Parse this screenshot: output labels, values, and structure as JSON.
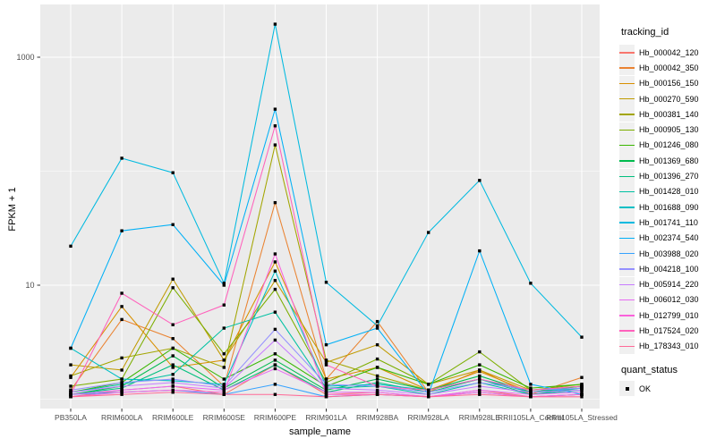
{
  "chart_data": {
    "type": "line",
    "title": "",
    "xlabel": "sample_name",
    "ylabel": "FPKM + 1",
    "y_scale": "log10",
    "ylim": [
      0.85,
      3000
    ],
    "grid": true,
    "y_major_gridlines": [
      10,
      1000
    ],
    "y_minor_gridlines": [
      1,
      100
    ],
    "y_ticks": [
      {
        "value": 1000,
        "label": "1000"
      },
      {
        "value": 10,
        "label": "10"
      }
    ],
    "legend_position": "right",
    "legend_title": "tracking_id",
    "categories": [
      "PB350LA",
      "RRIM600LA",
      "RRIM600LE",
      "RRIM600SE",
      "RRIM600PE",
      "RRIM901LA",
      "RRIM928BA",
      "RRIM928LA",
      "RRIM928LE",
      "RRII105LA_Control",
      "RRII105LA_Stressed"
    ],
    "series": [
      {
        "name": "Hb_000042_120",
        "color": "#F8766D",
        "values": [
          1.05,
          1.2,
          1.3,
          1.1,
          2.0,
          1.1,
          1.15,
          1.05,
          1.2,
          1.05,
          1.1
        ]
      },
      {
        "name": "Hb_000042_350",
        "color": "#EA8331",
        "values": [
          1.2,
          5.0,
          3.4,
          1.3,
          53,
          1.5,
          4.8,
          1.15,
          1.8,
          1.1,
          1.55
        ]
      },
      {
        "name": "Hb_000156_150",
        "color": "#D89000",
        "values": [
          1.55,
          6.5,
          1.9,
          2.2,
          16,
          1.5,
          1.9,
          1.2,
          1.75,
          1.15,
          1.3
        ]
      },
      {
        "name": "Hb_000270_590",
        "color": "#C09B00",
        "values": [
          2.0,
          1.8,
          11.3,
          2.2,
          11,
          2.1,
          3.0,
          1.35,
          1.8,
          1.2,
          1.3
        ]
      },
      {
        "name": "Hb_000381_140",
        "color": "#A3A500",
        "values": [
          1.6,
          2.3,
          2.8,
          1.9,
          170,
          2.2,
          1.6,
          1.2,
          1.5,
          1.15,
          1.25
        ]
      },
      {
        "name": "Hb_000905_130",
        "color": "#7CAE00",
        "values": [
          1.3,
          1.5,
          9.5,
          2.5,
          9.2,
          1.4,
          2.25,
          1.35,
          2.6,
          1.2,
          1.35
        ]
      },
      {
        "name": "Hb_001246_080",
        "color": "#39B600",
        "values": [
          1.15,
          1.4,
          2.8,
          1.5,
          2.5,
          1.3,
          1.9,
          1.35,
          2.0,
          1.25,
          1.35
        ]
      },
      {
        "name": "Hb_001369_680",
        "color": "#00BB4E",
        "values": [
          1.1,
          1.3,
          2.4,
          1.25,
          2.2,
          1.2,
          1.5,
          1.2,
          1.6,
          1.15,
          1.3
        ]
      },
      {
        "name": "Hb_001396_270",
        "color": "#00BF7D",
        "values": [
          1.1,
          1.25,
          2.0,
          1.2,
          2.0,
          1.15,
          1.4,
          1.15,
          1.5,
          1.1,
          1.25
        ]
      },
      {
        "name": "Hb_001428_010",
        "color": "#00C1A3",
        "values": [
          1.15,
          1.35,
          1.65,
          4.2,
          5.8,
          1.25,
          1.3,
          1.1,
          1.4,
          1.1,
          1.2
        ]
      },
      {
        "name": "Hb_001688_090",
        "color": "#00BFC4",
        "values": [
          2.8,
          1.5,
          1.45,
          1.35,
          13.3,
          1.3,
          1.35,
          1.2,
          1.5,
          1.15,
          1.25
        ]
      },
      {
        "name": "Hb_001741_110",
        "color": "#00BAE0",
        "values": [
          22,
          130,
          97,
          10.4,
          1950,
          10.6,
          4.4,
          29,
          83,
          10.4,
          3.5
        ]
      },
      {
        "name": "Hb_002374_540",
        "color": "#00B0F6",
        "values": [
          2.8,
          30,
          34,
          10.0,
          350,
          3.0,
          4.2,
          1.1,
          20,
          1.35,
          1.1
        ]
      },
      {
        "name": "Hb_003988_020",
        "color": "#35A2FF",
        "values": [
          1.1,
          1.15,
          1.2,
          1.1,
          1.35,
          1.05,
          1.1,
          1.05,
          1.15,
          1.05,
          1.1
        ]
      },
      {
        "name": "Hb_004218_100",
        "color": "#9590FF",
        "values": [
          1.2,
          1.4,
          1.5,
          1.3,
          4.1,
          1.35,
          1.3,
          1.15,
          1.4,
          1.2,
          1.25
        ]
      },
      {
        "name": "Hb_005914_220",
        "color": "#C77CFF",
        "values": [
          1.15,
          1.3,
          1.4,
          1.25,
          3.3,
          1.25,
          1.2,
          1.1,
          1.3,
          1.15,
          1.2
        ]
      },
      {
        "name": "Hb_006012_030",
        "color": "#E76BF3",
        "values": [
          1.1,
          1.2,
          1.3,
          1.2,
          1.85,
          1.15,
          1.15,
          1.05,
          1.2,
          1.1,
          1.15
        ]
      },
      {
        "name": "Hb_012799_010",
        "color": "#FA62DB",
        "values": [
          1.05,
          1.15,
          1.2,
          1.15,
          18.8,
          1.1,
          1.1,
          1.05,
          1.15,
          1.05,
          1.1
        ]
      },
      {
        "name": "Hb_017524_020",
        "color": "#FF62BC",
        "values": [
          1.1,
          8.5,
          4.5,
          6.7,
          250,
          2.0,
          1.3,
          1.2,
          1.5,
          1.2,
          1.3
        ]
      },
      {
        "name": "Hb_178343_010",
        "color": "#FF6A98",
        "values": [
          1.05,
          1.1,
          1.15,
          1.1,
          1.1,
          1.05,
          1.1,
          1.05,
          1.1,
          1.05,
          1.05
        ]
      }
    ],
    "point_marker": "black-square",
    "quant_legend": {
      "title": "quant_status",
      "items": [
        {
          "label": "OK",
          "marker": "black-square"
        }
      ]
    }
  },
  "colors": {
    "panel_bg": "#EBEBEB",
    "gridline": "#FFFFFF",
    "axis_text": "#4D4D4D",
    "tick_mark": "#333333",
    "title_text": "#000000",
    "legend_key_bg": "#F0F0F0",
    "point": "#000000",
    "plot_bg": "#FFFFFF"
  }
}
